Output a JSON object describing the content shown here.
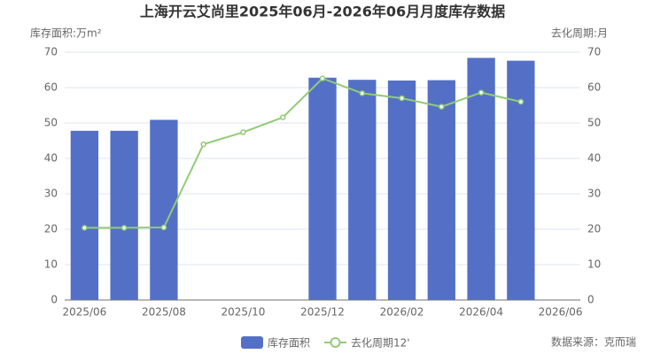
{
  "chart_data": {
    "type": "bar-line",
    "title": "上海开云艾尚里2025年06月-2026年06月月度库存数据",
    "y_axis_label": "库存面积:万m²",
    "y2_axis_label": "去化周期:月",
    "source": "数据来源：克而瑞",
    "categories": [
      "2025/06",
      null,
      "2025/08",
      null,
      "2025/10",
      null,
      "2025/12",
      null,
      "2026/02",
      null,
      "2026/04",
      null,
      "2026/06"
    ],
    "series": [
      {
        "name": "库存面积",
        "type": "bar",
        "color": "#5470c6",
        "values": [
          47.8,
          47.8,
          50.9,
          null,
          null,
          null,
          62.8,
          62.2,
          62.0,
          62.1,
          68.4,
          67.6,
          null
        ]
      },
      {
        "name": "去化周期12'",
        "type": "line",
        "color": "#91cc75",
        "axis": "y2",
        "values": [
          20.4,
          20.4,
          20.5,
          44.0,
          47.4,
          51.6,
          62.6,
          58.4,
          57.0,
          54.6,
          58.6,
          56.0,
          null
        ]
      }
    ],
    "ylim": [
      0,
      70
    ],
    "yticks": [
      0,
      10,
      20,
      30,
      40,
      50,
      60,
      70
    ],
    "y2lim": [
      0,
      70
    ],
    "y2ticks": [
      0,
      10,
      20,
      30,
      40,
      50,
      60,
      70
    ],
    "grid": true
  }
}
